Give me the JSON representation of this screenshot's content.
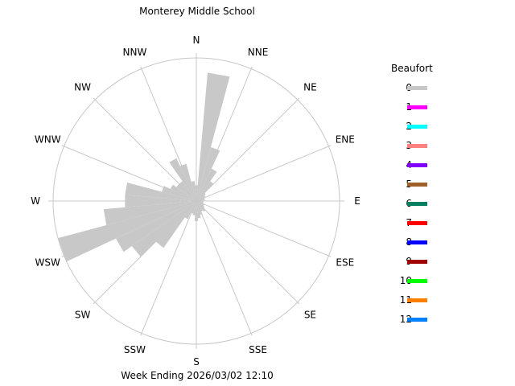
{
  "header": {
    "title": "Monterey Middle School"
  },
  "footer": {
    "caption": "Week Ending 2026/03/02 12:10"
  },
  "legend": {
    "title": "Beaufort",
    "items": [
      {
        "label": "0",
        "color": "#c8c8c8"
      },
      {
        "label": "1",
        "color": "#ff00ff"
      },
      {
        "label": "2",
        "color": "#00ffff"
      },
      {
        "label": "3",
        "color": "#ff8080"
      },
      {
        "label": "4",
        "color": "#8000ff"
      },
      {
        "label": "5",
        "color": "#a0602a"
      },
      {
        "label": "6",
        "color": "#008060"
      },
      {
        "label": "7",
        "color": "#ff0000"
      },
      {
        "label": "8",
        "color": "#0000ff"
      },
      {
        "label": "9",
        "color": "#a00000"
      },
      {
        "label": "10",
        "color": "#00ff00"
      },
      {
        "label": "11",
        "color": "#ff8000"
      },
      {
        "label": "12",
        "color": "#0080ff"
      }
    ]
  },
  "chart_data": {
    "type": "wind_rose",
    "title": "Monterey Middle School",
    "subtitle": "Week Ending 2026/03/02 12:10",
    "legend_title": "Beaufort",
    "legend_position": "right",
    "grid": true,
    "direction_labels": [
      "N",
      "NNE",
      "NE",
      "ENE",
      "E",
      "ESE",
      "SE",
      "SSE",
      "S",
      "SSW",
      "SW",
      "WSW",
      "W",
      "WNW",
      "NW",
      "NNW"
    ],
    "bin_width_deg": 10,
    "series": [
      {
        "name": "0",
        "color": "#c8c8c8",
        "directions_deg": [
          0,
          10,
          20,
          30,
          40,
          50,
          60,
          70,
          80,
          90,
          100,
          110,
          120,
          130,
          140,
          150,
          160,
          170,
          180,
          190,
          200,
          210,
          220,
          230,
          240,
          250,
          260,
          270,
          280,
          290,
          300,
          310,
          320,
          330,
          340,
          350
        ],
        "values_rel": [
          0.11,
          0.9,
          0.39,
          0.25,
          0.17,
          0.08,
          0.07,
          0.06,
          0.06,
          0.05,
          0.05,
          0.05,
          0.06,
          0.07,
          0.09,
          0.08,
          0.1,
          0.12,
          0.14,
          0.1,
          0.09,
          0.14,
          0.4,
          0.55,
          0.62,
          1.0,
          0.65,
          0.5,
          0.5,
          0.25,
          0.2,
          0.17,
          0.17,
          0.33,
          0.27,
          0.14
        ]
      }
    ],
    "radius_max_px": 178
  }
}
